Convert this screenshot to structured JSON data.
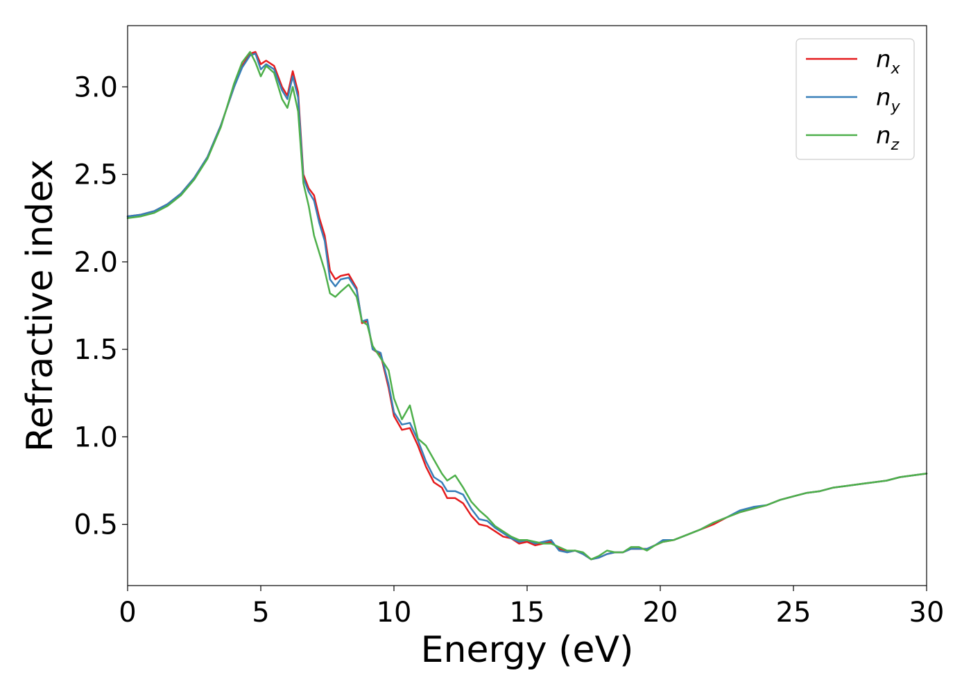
{
  "chart_data": {
    "type": "line",
    "xlabel": "Energy (eV)",
    "ylabel": "Refractive index",
    "xlim": [
      0,
      30
    ],
    "ylim": [
      0.15,
      3.35
    ],
    "xticks": [
      0,
      5,
      10,
      15,
      20,
      25,
      30
    ],
    "xtick_labels": [
      "0",
      "5",
      "10",
      "15",
      "20",
      "25",
      "30"
    ],
    "yticks": [
      0.5,
      1.0,
      1.5,
      2.0,
      2.5,
      3.0
    ],
    "ytick_labels": [
      "0.5",
      "1.0",
      "1.5",
      "2.0",
      "2.5",
      "3.0"
    ],
    "grid": false,
    "legend_position": "top-right",
    "series": [
      {
        "name": "n",
        "subscript": "x",
        "color": "#e41a1c",
        "x": [
          0,
          0.5,
          1,
          1.5,
          2,
          2.5,
          3,
          3.5,
          4,
          4.3,
          4.6,
          4.8,
          5.0,
          5.2,
          5.5,
          5.8,
          6.0,
          6.2,
          6.4,
          6.6,
          6.8,
          7.0,
          7.2,
          7.4,
          7.6,
          7.8,
          8.0,
          8.3,
          8.6,
          8.8,
          9.0,
          9.2,
          9.5,
          9.8,
          10.0,
          10.3,
          10.6,
          10.9,
          11.2,
          11.5,
          11.8,
          12.0,
          12.3,
          12.6,
          12.9,
          13.2,
          13.5,
          13.8,
          14.1,
          14.4,
          14.7,
          15.0,
          15.3,
          15.6,
          15.9,
          16.2,
          16.5,
          16.8,
          17.1,
          17.4,
          17.7,
          18.0,
          18.3,
          18.6,
          18.9,
          19.2,
          19.5,
          19.8,
          20.1,
          20.5,
          21.0,
          21.5,
          22.0,
          22.5,
          23.0,
          23.5,
          24.0,
          24.5,
          25.0,
          25.5,
          26.0,
          26.5,
          27.0,
          27.5,
          28.0,
          28.5,
          29.0,
          29.5,
          30.0
        ],
        "values": [
          2.26,
          2.27,
          2.29,
          2.33,
          2.39,
          2.48,
          2.6,
          2.78,
          3.0,
          3.12,
          3.19,
          3.2,
          3.13,
          3.15,
          3.12,
          3.0,
          2.95,
          3.09,
          2.97,
          2.5,
          2.42,
          2.38,
          2.25,
          2.15,
          1.95,
          1.9,
          1.92,
          1.93,
          1.85,
          1.65,
          1.66,
          1.5,
          1.47,
          1.28,
          1.12,
          1.04,
          1.05,
          0.95,
          0.83,
          0.74,
          0.71,
          0.65,
          0.65,
          0.62,
          0.55,
          0.5,
          0.49,
          0.46,
          0.43,
          0.42,
          0.39,
          0.4,
          0.38,
          0.39,
          0.4,
          0.36,
          0.34,
          0.35,
          0.33,
          0.3,
          0.31,
          0.33,
          0.34,
          0.34,
          0.36,
          0.36,
          0.36,
          0.38,
          0.4,
          0.41,
          0.44,
          0.47,
          0.5,
          0.54,
          0.57,
          0.59,
          0.61,
          0.64,
          0.66,
          0.68,
          0.69,
          0.71,
          0.72,
          0.73,
          0.74,
          0.75,
          0.77,
          0.78,
          0.79
        ]
      },
      {
        "name": "n",
        "subscript": "y",
        "color": "#377eb8",
        "x": [
          0,
          0.5,
          1,
          1.5,
          2,
          2.5,
          3,
          3.5,
          4,
          4.3,
          4.6,
          4.8,
          5.0,
          5.2,
          5.5,
          5.8,
          6.0,
          6.2,
          6.4,
          6.6,
          6.8,
          7.0,
          7.2,
          7.4,
          7.6,
          7.8,
          8.0,
          8.3,
          8.6,
          8.8,
          9.0,
          9.2,
          9.5,
          9.8,
          10.0,
          10.3,
          10.6,
          10.9,
          11.2,
          11.5,
          11.8,
          12.0,
          12.3,
          12.6,
          12.9,
          13.2,
          13.5,
          13.8,
          14.1,
          14.4,
          14.7,
          15.0,
          15.3,
          15.6,
          15.9,
          16.2,
          16.5,
          16.8,
          17.1,
          17.4,
          17.7,
          18.0,
          18.3,
          18.6,
          18.9,
          19.2,
          19.5,
          19.8,
          20.1,
          20.5,
          21.0,
          21.5,
          22.0,
          22.5,
          23.0,
          23.5,
          24.0,
          24.5,
          25.0,
          25.5,
          26.0,
          26.5,
          27.0,
          27.5,
          28.0,
          28.5,
          29.0,
          29.5,
          30.0
        ],
        "values": [
          2.26,
          2.27,
          2.29,
          2.33,
          2.39,
          2.48,
          2.6,
          2.78,
          3.0,
          3.11,
          3.18,
          3.19,
          3.1,
          3.13,
          3.1,
          2.98,
          2.93,
          3.06,
          2.94,
          2.48,
          2.4,
          2.35,
          2.22,
          2.12,
          1.9,
          1.86,
          1.9,
          1.91,
          1.84,
          1.66,
          1.67,
          1.5,
          1.48,
          1.3,
          1.14,
          1.07,
          1.08,
          0.98,
          0.86,
          0.77,
          0.74,
          0.69,
          0.69,
          0.67,
          0.59,
          0.53,
          0.52,
          0.48,
          0.45,
          0.42,
          0.4,
          0.41,
          0.39,
          0.4,
          0.41,
          0.35,
          0.34,
          0.35,
          0.33,
          0.3,
          0.31,
          0.33,
          0.34,
          0.34,
          0.36,
          0.36,
          0.36,
          0.38,
          0.41,
          0.41,
          0.44,
          0.47,
          0.51,
          0.54,
          0.58,
          0.6,
          0.61,
          0.64,
          0.66,
          0.68,
          0.69,
          0.71,
          0.72,
          0.73,
          0.74,
          0.75,
          0.77,
          0.78,
          0.79
        ]
      },
      {
        "name": "n",
        "subscript": "z",
        "color": "#4daf4a",
        "x": [
          0,
          0.5,
          1,
          1.5,
          2,
          2.5,
          3,
          3.5,
          4,
          4.3,
          4.6,
          4.8,
          5.0,
          5.2,
          5.5,
          5.8,
          6.0,
          6.2,
          6.4,
          6.6,
          6.8,
          7.0,
          7.2,
          7.4,
          7.6,
          7.8,
          8.0,
          8.3,
          8.6,
          8.8,
          9.0,
          9.2,
          9.5,
          9.8,
          10.0,
          10.3,
          10.6,
          10.9,
          11.2,
          11.5,
          11.8,
          12.0,
          12.3,
          12.6,
          12.9,
          13.2,
          13.5,
          13.8,
          14.1,
          14.4,
          14.7,
          15.0,
          15.3,
          15.6,
          15.9,
          16.2,
          16.5,
          16.8,
          17.1,
          17.4,
          17.7,
          18.0,
          18.3,
          18.6,
          18.9,
          19.2,
          19.5,
          19.8,
          20.1,
          20.5,
          21.0,
          21.5,
          22.0,
          22.5,
          23.0,
          23.5,
          24.0,
          24.5,
          25.0,
          25.5,
          26.0,
          26.5,
          27.0,
          27.5,
          28.0,
          28.5,
          29.0,
          29.5,
          30.0
        ],
        "values": [
          2.25,
          2.26,
          2.28,
          2.32,
          2.38,
          2.47,
          2.59,
          2.77,
          3.02,
          3.14,
          3.2,
          3.14,
          3.06,
          3.12,
          3.08,
          2.93,
          2.88,
          3.0,
          2.86,
          2.45,
          2.32,
          2.15,
          2.05,
          1.95,
          1.82,
          1.8,
          1.83,
          1.87,
          1.8,
          1.66,
          1.64,
          1.52,
          1.45,
          1.38,
          1.22,
          1.1,
          1.18,
          0.99,
          0.95,
          0.87,
          0.79,
          0.75,
          0.78,
          0.71,
          0.63,
          0.58,
          0.54,
          0.49,
          0.46,
          0.43,
          0.41,
          0.41,
          0.4,
          0.39,
          0.39,
          0.37,
          0.35,
          0.35,
          0.34,
          0.3,
          0.32,
          0.35,
          0.34,
          0.34,
          0.37,
          0.37,
          0.35,
          0.38,
          0.4,
          0.41,
          0.44,
          0.47,
          0.51,
          0.54,
          0.57,
          0.59,
          0.61,
          0.64,
          0.66,
          0.68,
          0.69,
          0.71,
          0.72,
          0.73,
          0.74,
          0.75,
          0.77,
          0.78,
          0.79
        ]
      }
    ]
  }
}
